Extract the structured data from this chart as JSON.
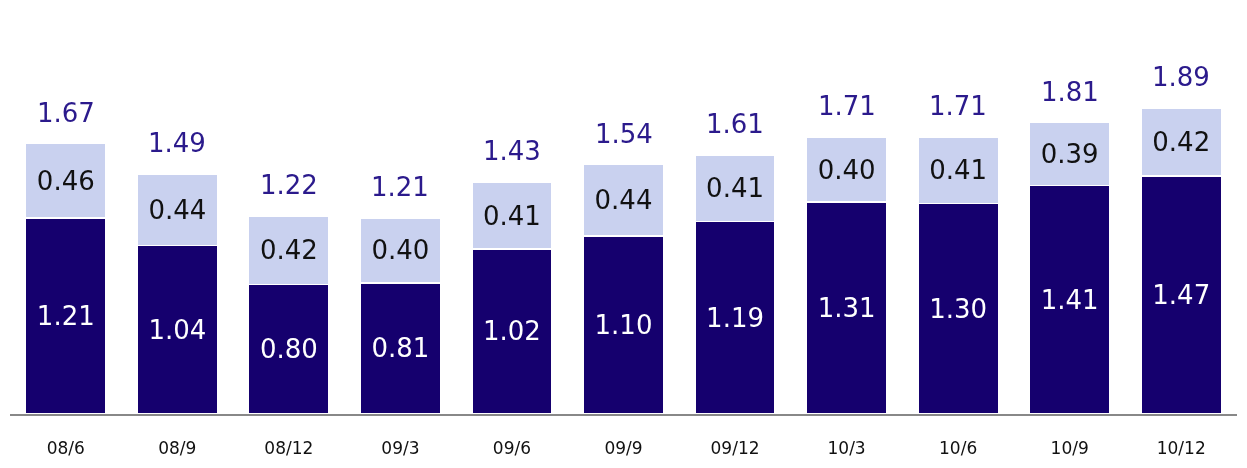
{
  "chart_data": {
    "type": "bar",
    "stacked": true,
    "categories": [
      "08/6",
      "08/9",
      "08/12",
      "09/3",
      "09/6",
      "09/9",
      "09/12",
      "10/3",
      "10/6",
      "10/9",
      "10/12"
    ],
    "series": [
      {
        "color": "#15006e",
        "values": [
          1.21,
          1.04,
          0.8,
          0.81,
          1.02,
          1.1,
          1.19,
          1.31,
          1.3,
          1.41,
          1.47
        ],
        "value_labels": [
          "1.21",
          "1.04",
          "0.80",
          "0.81",
          "1.02",
          "1.10",
          "1.19",
          "1.31",
          "1.30",
          "1.41",
          "1.47"
        ]
      },
      {
        "color": "#c9d1ef",
        "values": [
          0.46,
          0.44,
          0.42,
          0.4,
          0.41,
          0.44,
          0.41,
          0.4,
          0.41,
          0.39,
          0.42
        ],
        "value_labels": [
          "0.46",
          "0.44",
          "0.42",
          "0.40",
          "0.41",
          "0.44",
          "0.41",
          "0.40",
          "0.41",
          "0.39",
          "0.42"
        ]
      }
    ],
    "totals": [
      "1.67",
      "1.49",
      "1.22",
      "1.21",
      "1.43",
      "1.54",
      "1.61",
      "1.71",
      "1.71",
      "1.81",
      "1.89"
    ]
  }
}
